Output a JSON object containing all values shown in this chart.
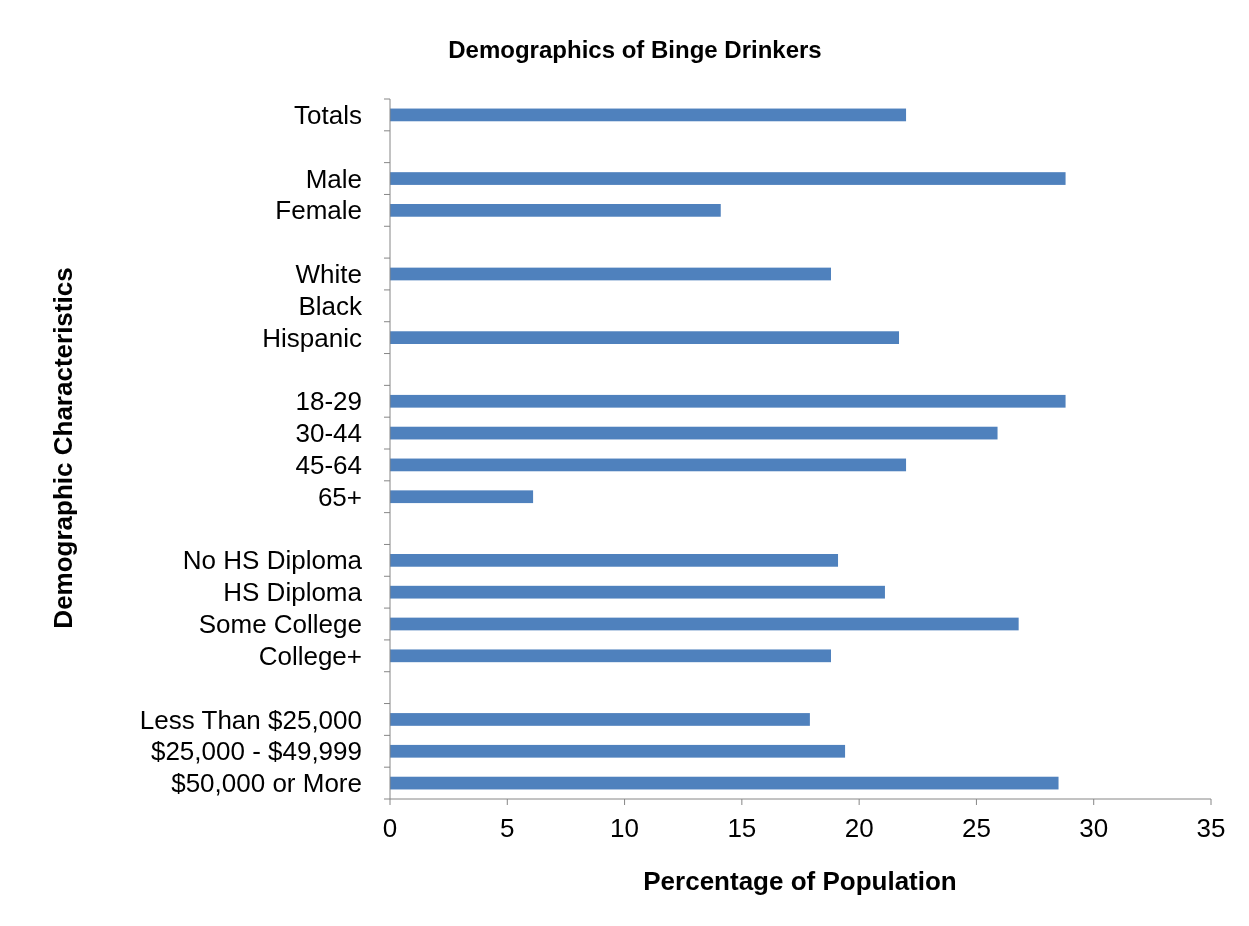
{
  "chart_data": {
    "type": "bar",
    "orientation": "horizontal",
    "title": "Demographics of Binge Drinkers",
    "xlabel": "Percentage of Population",
    "ylabel": "Demographic Characteristics",
    "categories": [
      "Totals",
      null,
      "Male",
      "Female",
      null,
      "White",
      "Black",
      "Hispanic",
      null,
      "18-29",
      "30-44",
      "45-64",
      "65+",
      null,
      "No HS Diploma",
      "HS Diploma",
      "Some College",
      "College+",
      null,
      "Less Than $25,000",
      "$25,000 - $49,999",
      "$50,000 or More"
    ],
    "values": [
      22.0,
      null,
      28.8,
      14.1,
      null,
      18.8,
      null,
      21.7,
      null,
      28.8,
      25.9,
      22.0,
      6.1,
      null,
      19.1,
      21.1,
      26.8,
      18.8,
      null,
      17.9,
      19.4,
      28.5
    ],
    "color": "#4f81bd",
    "xlim": [
      0,
      35
    ],
    "xticks": [
      0,
      5,
      10,
      15,
      20,
      25,
      30,
      35
    ]
  }
}
